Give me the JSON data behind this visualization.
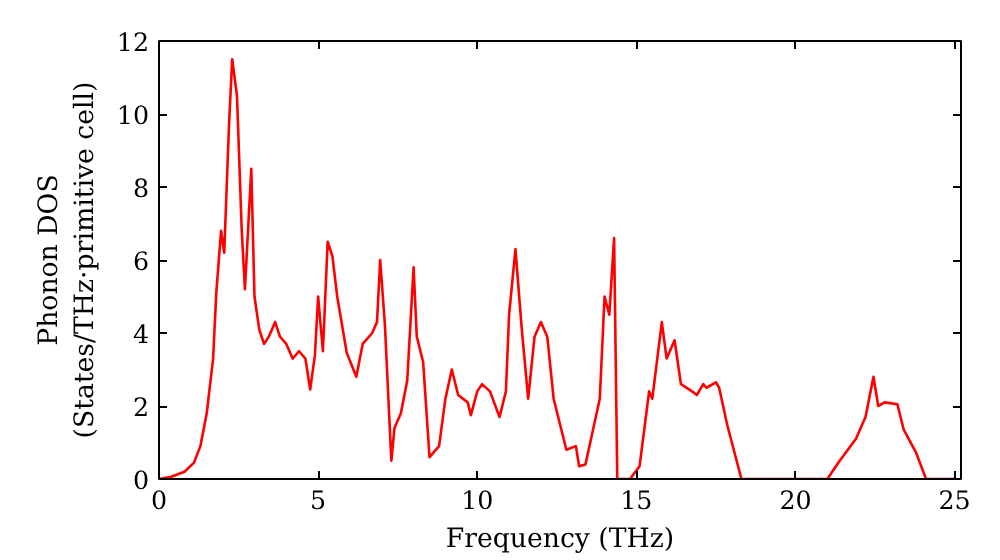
{
  "chart_data": {
    "type": "line",
    "xlabel": "Frequency (THz)",
    "ylabel": "Phonon DOS\n(States/THz·primitive cell)",
    "x": [
      0,
      0.38,
      0.8,
      1.1,
      1.3,
      1.5,
      1.7,
      1.8,
      1.95,
      2.05,
      2.2,
      2.3,
      2.45,
      2.6,
      2.7,
      2.9,
      3.0,
      3.15,
      3.3,
      3.45,
      3.65,
      3.8,
      4.0,
      4.2,
      4.4,
      4.6,
      4.75,
      4.9,
      5.0,
      5.15,
      5.3,
      5.45,
      5.6,
      5.9,
      6.2,
      6.4,
      6.7,
      6.85,
      6.95,
      7.1,
      7.3,
      7.4,
      7.6,
      7.8,
      8.0,
      8.1,
      8.3,
      8.5,
      8.8,
      9.0,
      9.2,
      9.4,
      9.7,
      9.8,
      10.0,
      10.15,
      10.4,
      10.7,
      10.9,
      11.0,
      11.2,
      11.4,
      11.6,
      11.8,
      12.0,
      12.2,
      12.4,
      12.6,
      12.8,
      13.1,
      13.2,
      13.4,
      13.6,
      13.85,
      14.0,
      14.15,
      14.3,
      14.4,
      14.8,
      15.1,
      15.4,
      15.5,
      15.8,
      15.95,
      16.2,
      16.4,
      16.75,
      16.9,
      17.1,
      17.2,
      17.5,
      17.6,
      17.85,
      18.3,
      21.0,
      21.35,
      21.9,
      22.2,
      22.45,
      22.6,
      22.8,
      23.2,
      23.4,
      23.8,
      24.1,
      25.0
    ],
    "series": [
      {
        "color": "#ff0000",
        "values": [
          0,
          0.06,
          0.2,
          0.45,
          0.9,
          1.8,
          3.3,
          5.1,
          6.8,
          6.2,
          9.7,
          11.5,
          10.5,
          6.8,
          5.2,
          8.5,
          5.0,
          4.1,
          3.7,
          3.9,
          4.3,
          3.9,
          3.7,
          3.3,
          3.5,
          3.3,
          2.45,
          3.4,
          5.0,
          3.5,
          6.5,
          6.1,
          5.0,
          3.45,
          2.8,
          3.7,
          4.0,
          4.3,
          6.0,
          4.2,
          0.5,
          1.4,
          1.8,
          2.7,
          5.8,
          3.9,
          3.2,
          0.6,
          0.9,
          2.2,
          3.0,
          2.3,
          2.1,
          1.75,
          2.4,
          2.6,
          2.4,
          1.7,
          2.4,
          4.5,
          6.3,
          4.1,
          2.2,
          3.9,
          4.3,
          3.9,
          2.2,
          1.5,
          0.8,
          0.9,
          0.35,
          0.4,
          1.2,
          2.2,
          5.0,
          4.5,
          6.6,
          0,
          0,
          0.35,
          2.4,
          2.2,
          4.3,
          3.3,
          3.8,
          2.6,
          2.4,
          2.3,
          2.6,
          2.5,
          2.65,
          2.5,
          1.5,
          0,
          0,
          0.45,
          1.1,
          1.7,
          2.8,
          2.0,
          2.1,
          2.05,
          1.35,
          0.7,
          0,
          0
        ]
      }
    ],
    "xlim": [
      0,
      25.2
    ],
    "ylim": [
      0,
      12
    ],
    "xticks": [
      0,
      5,
      10,
      15,
      20,
      25
    ],
    "yticks": [
      0,
      2,
      4,
      6,
      8,
      10,
      12
    ],
    "grid": false,
    "line_style": "solid",
    "marker": "none"
  }
}
